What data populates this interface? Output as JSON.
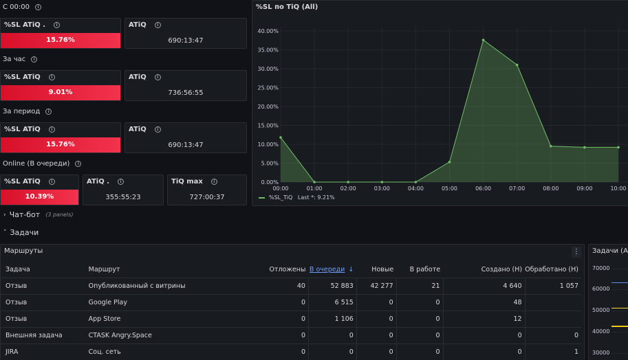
{
  "left_sections": [
    {
      "title": "С 00:00",
      "stats": [
        {
          "title": "%SL ATiQ .",
          "value": "15.76%",
          "kind": "bar"
        },
        {
          "title": "ATiQ",
          "value": "690:13:47",
          "kind": "plain"
        }
      ]
    },
    {
      "title": "За час",
      "stats": [
        {
          "title": "%SL ATiQ",
          "value": "9.01%",
          "kind": "bar"
        },
        {
          "title": "ATiQ",
          "value": "736:56:55",
          "kind": "plain"
        }
      ]
    },
    {
      "title": "За период",
      "stats": [
        {
          "title": "%SL ATiQ",
          "value": "15.76%",
          "kind": "bar"
        },
        {
          "title": "ATiQ",
          "value": "690:13:47",
          "kind": "plain"
        }
      ]
    },
    {
      "title": "Online (В очереди)",
      "stats": [
        {
          "title": "%SL ATiQ",
          "value": "10.39%",
          "kind": "bar"
        },
        {
          "title": "ATiQ .",
          "value": "355:55:23",
          "kind": "plain"
        },
        {
          "title": "TiQ max",
          "value": "727:00:37",
          "kind": "plain"
        }
      ]
    }
  ],
  "chart_panel": {
    "title": "%SL по TiQ (All)",
    "legend_text": "%SL_TiQ   Last *: 9.21%"
  },
  "chart_data": {
    "type": "area",
    "x": [
      "00:00",
      "01:00",
      "02:00",
      "03:00",
      "04:00",
      "05:00",
      "06:00",
      "07:00",
      "08:00",
      "09:00",
      "10:00"
    ],
    "series": [
      {
        "name": "%SL_TiQ",
        "values": [
          11.8,
          0.0,
          0.0,
          0.0,
          0.0,
          5.3,
          37.6,
          31.0,
          9.5,
          9.2,
          9.2
        ]
      }
    ],
    "y_ticks": [
      "0.00%",
      "5.00%",
      "10.00%",
      "15.00%",
      "20.00%",
      "25.00%",
      "30.00%",
      "35.00%",
      "40.00%"
    ],
    "ylim": [
      0,
      40
    ],
    "grid": true,
    "legend": "bottom-left",
    "color": "#73bf69"
  },
  "rows": {
    "chatbot": {
      "title": "Чат-бот",
      "sub": "(3 panels)"
    },
    "tasks": {
      "title": "Задачи"
    }
  },
  "routes_panel": {
    "title": "Маршруты",
    "columns": [
      "Задача",
      "Маршрут",
      "Отложены",
      "В очереди",
      "Новые",
      "В работе",
      "Создано (Н)",
      "Обработано (Н)"
    ],
    "sort_arrow": "↓",
    "menu_icon": "⋮",
    "rows": [
      [
        "Отзыв",
        "Опубликованный с витрины",
        "40",
        "52 883",
        "42 277",
        "21",
        "4 640",
        "1 057"
      ],
      [
        "Отзыв",
        "Google Play",
        "0",
        "6 515",
        "0",
        "0",
        "48",
        ""
      ],
      [
        "Отзыв",
        "App Store",
        "0",
        "1 106",
        "0",
        "0",
        "12",
        ""
      ],
      [
        "Внешняя задача",
        "CTASK Angry.Space",
        "0",
        "0",
        "0",
        "0",
        "0",
        "0"
      ],
      [
        "JIRA",
        "Соц. сеть",
        "0",
        "0",
        "0",
        "0",
        "0",
        "1"
      ]
    ]
  },
  "tasks_panel": {
    "title": "Задачи (All",
    "y_ticks": [
      "70000",
      "60000",
      "50000",
      "40000",
      "30000"
    ]
  }
}
